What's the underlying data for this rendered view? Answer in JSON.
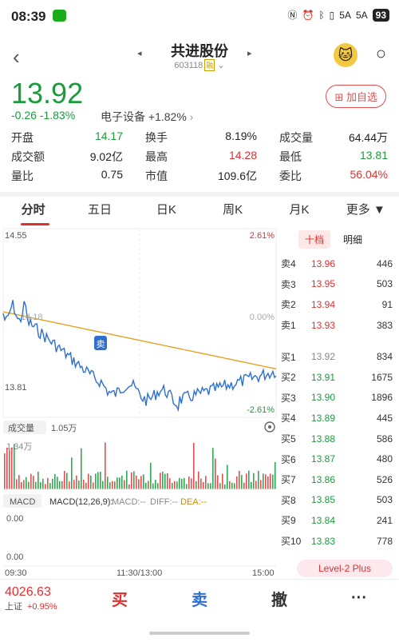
{
  "status_bar": {
    "time": "08:39",
    "signal1": "5A",
    "signal2": "5A",
    "battery": "93"
  },
  "header": {
    "title": "共进股份",
    "code": "603118",
    "rzrq_badge": "融",
    "back_icon": "chevron-left-icon",
    "search_icon": "search-icon"
  },
  "quote": {
    "price": "13.92",
    "change": "-0.26",
    "change_pct": "-1.83%",
    "industry_label": "电子设备",
    "industry_change": "+1.82%",
    "add_favorite": "加自选"
  },
  "stats": [
    [
      {
        "label": "开盘",
        "value": "14.17",
        "color": "green"
      },
      {
        "label": "换手",
        "value": "8.19%",
        "color": "normal"
      },
      {
        "label": "成交量",
        "value": "64.44万",
        "color": "normal"
      }
    ],
    [
      {
        "label": "成交额",
        "value": "9.02亿",
        "color": "normal"
      },
      {
        "label": "最高",
        "value": "14.28",
        "color": "red"
      },
      {
        "label": "最低",
        "value": "13.81",
        "color": "green"
      }
    ],
    [
      {
        "label": "量比",
        "value": "0.75",
        "color": "normal"
      },
      {
        "label": "市值",
        "value": "109.6亿",
        "color": "normal"
      },
      {
        "label": "委比",
        "value": "56.04%",
        "color": "red"
      }
    ]
  ],
  "tabs": [
    "分时",
    "五日",
    "日K",
    "周K",
    "月K",
    "更多 ▼"
  ],
  "chart": {
    "y_high": "14.55",
    "y_high_pct": "2.61%",
    "y_mid": "14.18",
    "y_mid_pct": "0.00%",
    "y_low": "13.81",
    "y_low_pct": "-2.61%",
    "sell_marker": "卖",
    "volume_label": "成交量",
    "volume_value": "1.05万",
    "volume_max": "1.34万",
    "macd_label": "MACD",
    "macd_params": "MACD(12,26,9):",
    "macd_value": "MACD:--",
    "diff_value": "DIFF:--",
    "dea_value": "DEA:--",
    "macd_top": "0.00",
    "macd_bottom": "0.00",
    "time_start": "09:30",
    "time_mid": "11:30/13:00",
    "time_end": "15:00"
  },
  "orderbook": {
    "tabs": [
      "十档",
      "明细"
    ],
    "sells": [
      {
        "name": "卖4",
        "price": "13.96",
        "qty": "446"
      },
      {
        "name": "卖3",
        "price": "13.95",
        "qty": "503"
      },
      {
        "name": "卖2",
        "price": "13.94",
        "qty": "91"
      },
      {
        "name": "卖1",
        "price": "13.93",
        "qty": "383"
      }
    ],
    "buys": [
      {
        "name": "买1",
        "price": "13.92",
        "qty": "834"
      },
      {
        "name": "买2",
        "price": "13.91",
        "qty": "1675"
      },
      {
        "name": "买3",
        "price": "13.90",
        "qty": "1896"
      },
      {
        "name": "买4",
        "price": "13.89",
        "qty": "445"
      },
      {
        "name": "买5",
        "price": "13.88",
        "qty": "586"
      },
      {
        "name": "买6",
        "price": "13.87",
        "qty": "480"
      },
      {
        "name": "买7",
        "price": "13.86",
        "qty": "526"
      },
      {
        "name": "买8",
        "price": "13.85",
        "qty": "503"
      },
      {
        "name": "买9",
        "price": "13.84",
        "qty": "241"
      },
      {
        "name": "买10",
        "price": "13.83",
        "qty": "778"
      }
    ],
    "level2": "Level-2 Plus"
  },
  "bottom": {
    "index_value": "4026.63",
    "index_name": "上证",
    "index_change": "+0.95%",
    "buy": "买",
    "sell": "卖",
    "cancel": "撤",
    "more": "···"
  }
}
